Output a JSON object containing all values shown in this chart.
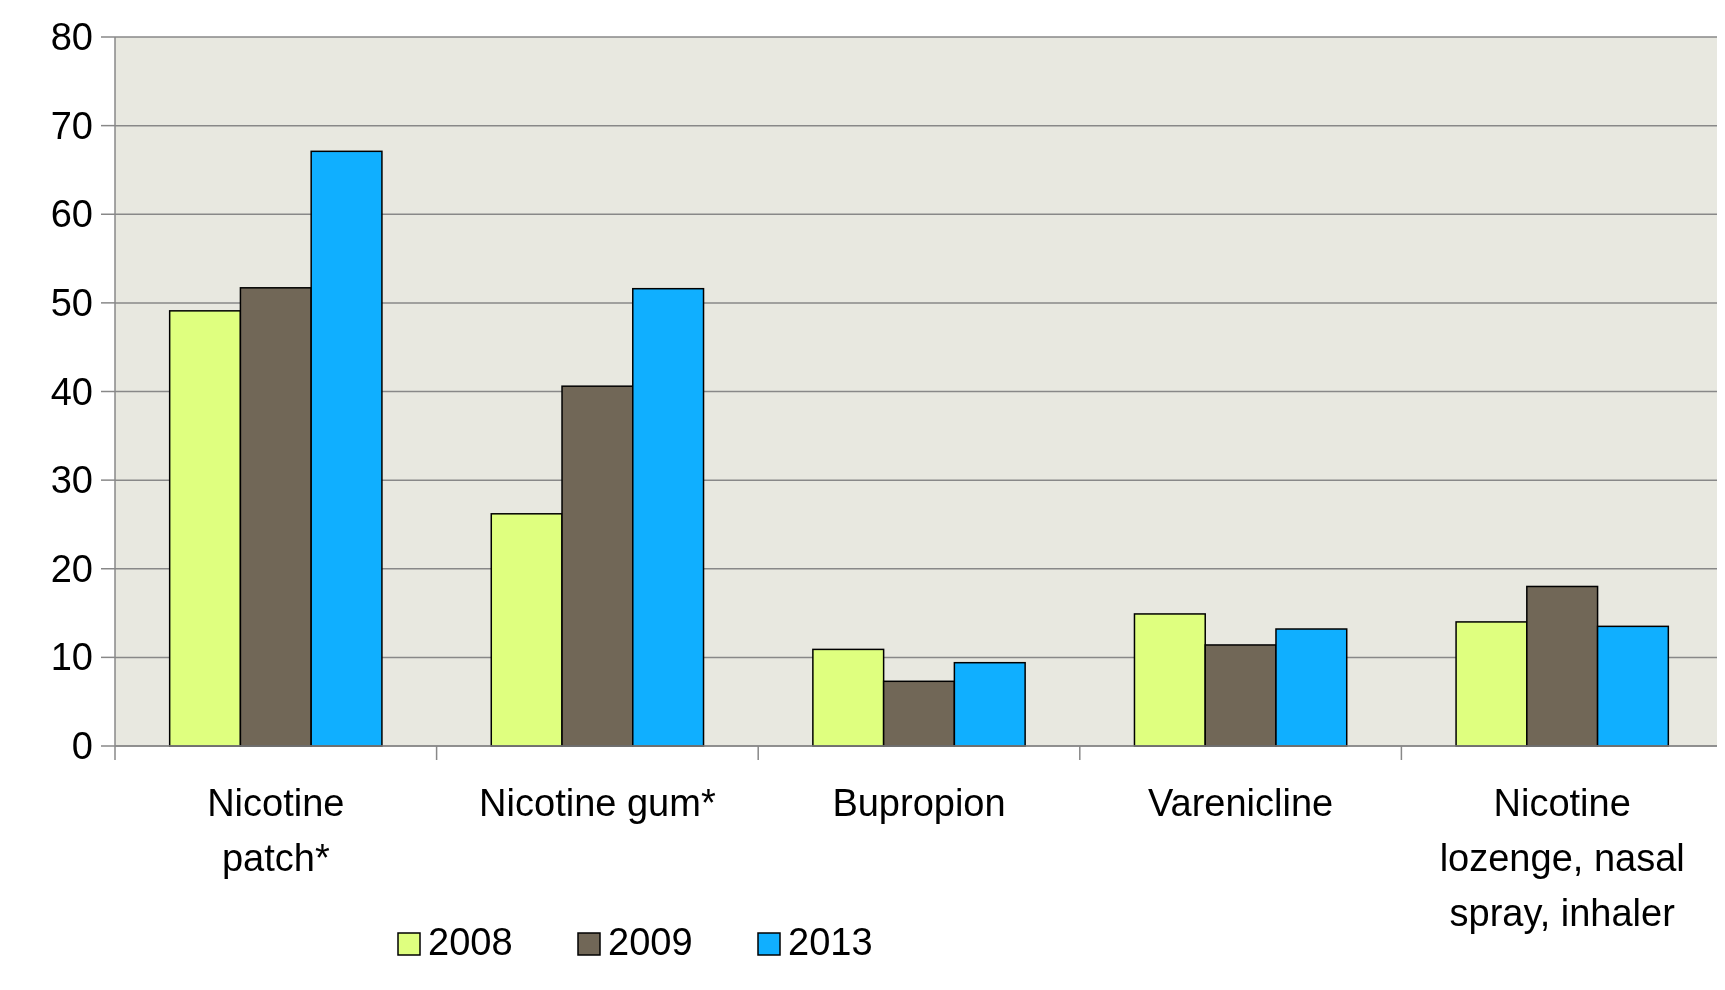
{
  "chart_data": {
    "type": "bar",
    "categories": [
      "Nicotine patch*",
      "Nicotine gum*",
      "Bupropion",
      "Varenicline",
      "Nicotine lozenge, nasal spray, inhaler"
    ],
    "series": [
      {
        "name": "2008",
        "color": "#dfff7f",
        "values": [
          49.1,
          26.2,
          10.9,
          14.9,
          14.0
        ]
      },
      {
        "name": "2009",
        "color": "#716757",
        "values": [
          51.7,
          40.6,
          7.3,
          11.4,
          18.0
        ]
      },
      {
        "name": "2013",
        "color": "#10afff",
        "values": [
          67.1,
          51.6,
          9.4,
          13.2,
          13.5
        ]
      }
    ],
    "ylim": [
      0,
      80
    ],
    "yticks": [
      0,
      10,
      20,
      30,
      40,
      50,
      60,
      70,
      80
    ],
    "grid": "y",
    "legend": "bottom left"
  }
}
